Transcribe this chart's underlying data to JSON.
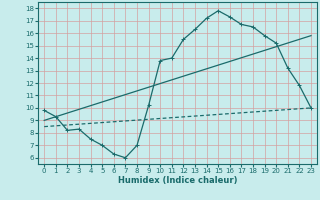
{
  "xlabel": "Humidex (Indice chaleur)",
  "ylabel": "",
  "bg_color": "#c8ecec",
  "line_color": "#1a6b6b",
  "grid_color": "#e0b8b8",
  "xlim": [
    -0.5,
    23.5
  ],
  "ylim": [
    5.5,
    18.5
  ],
  "yticks": [
    6,
    7,
    8,
    9,
    10,
    11,
    12,
    13,
    14,
    15,
    16,
    17,
    18
  ],
  "xticks": [
    0,
    1,
    2,
    3,
    4,
    5,
    6,
    7,
    8,
    9,
    10,
    11,
    12,
    13,
    14,
    15,
    16,
    17,
    18,
    19,
    20,
    21,
    22,
    23
  ],
  "curve_x": [
    0,
    1,
    2,
    3,
    4,
    5,
    6,
    7,
    8,
    9,
    10,
    11,
    12,
    13,
    14,
    15,
    16,
    17,
    18,
    19,
    20,
    21,
    22,
    23
  ],
  "curve_y": [
    9.8,
    9.3,
    8.2,
    8.3,
    7.5,
    7.0,
    6.3,
    6.0,
    7.0,
    10.2,
    13.8,
    14.0,
    15.5,
    16.3,
    17.2,
    17.8,
    17.3,
    16.7,
    16.5,
    15.8,
    15.2,
    13.2,
    11.8,
    10.0
  ],
  "line1_x": [
    0,
    23
  ],
  "line1_y": [
    9.0,
    15.8
  ],
  "line2_x": [
    0,
    23
  ],
  "line2_y": [
    8.5,
    10.0
  ],
  "figsize": [
    3.2,
    2.0
  ],
  "dpi": 100
}
